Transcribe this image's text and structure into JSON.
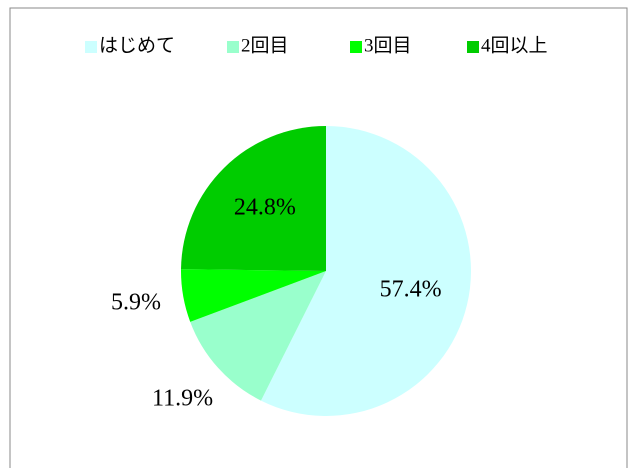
{
  "chart_data": {
    "type": "pie",
    "categories": [
      "はじめて",
      "2回目",
      "3回目",
      "4回以上"
    ],
    "values": [
      57.4,
      11.9,
      5.9,
      24.8
    ],
    "value_labels": [
      "57.4%",
      "11.9%",
      "5.9%",
      "24.8%"
    ],
    "colors": [
      "#ccffff",
      "#99ffcc",
      "#00ff00",
      "#00cc00"
    ],
    "legend": "top"
  }
}
